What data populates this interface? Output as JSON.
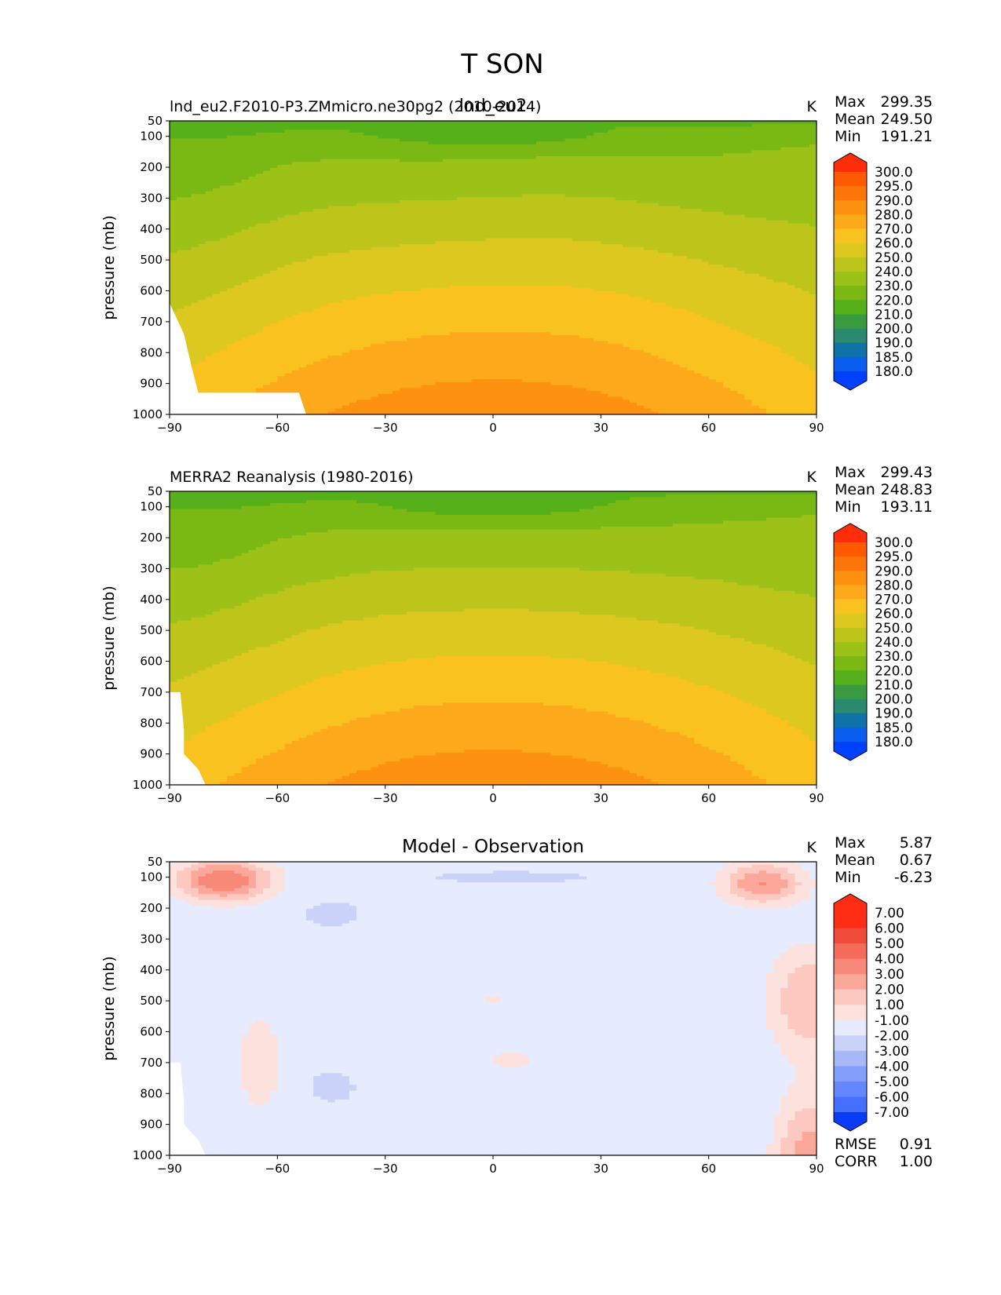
{
  "figure": {
    "title": "T SON"
  },
  "colors": {
    "sequential": [
      "#0040ff",
      "#0a5ff0",
      "#0f72a8",
      "#2a8a70",
      "#3a9a40",
      "#56b01a",
      "#7ab814",
      "#9cc217",
      "#bdc51a",
      "#dcc81f",
      "#f9c21f",
      "#fda91a",
      "#fd9110",
      "#fd7508",
      "#ff5a00",
      "#ff2d0a"
    ],
    "diverging": [
      "#0b3cf5",
      "#2456ff",
      "#4570ff",
      "#6487ff",
      "#849ffb",
      "#a6b8f8",
      "#c9d3f9",
      "#e6ebfd",
      "#fdfdfd",
      "#fde1dd",
      "#fdc8c0",
      "#fba799",
      "#f88877",
      "#f56b59",
      "#f04a3a",
      "#ff2d14"
    ]
  },
  "chart_data": [
    {
      "type": "heatmap",
      "subtype": "filled-contour",
      "panel": "test",
      "title_left": "lnd_eu2.F2010-P3.ZMmicro.ne30pg2 (2010-2014)",
      "title_center": "lnd_eu2",
      "units": "K",
      "xlabel": "",
      "ylabel": "pressure (mb)",
      "xlim": [
        -90,
        90
      ],
      "ylim": [
        1000,
        50
      ],
      "xticks": [
        "−90",
        "−60",
        "−30",
        "0",
        "30",
        "60",
        "90"
      ],
      "yticks": [
        "50",
        "100",
        "200",
        "300",
        "400",
        "500",
        "600",
        "700",
        "800",
        "900",
        "1000"
      ],
      "stats": [
        {
          "label": "Max",
          "value": "299.35"
        },
        {
          "label": "Mean",
          "value": "249.50"
        },
        {
          "label": "Min",
          "value": "191.21"
        }
      ],
      "colorbar": {
        "levels": [
          "300.0",
          "295.0",
          "290.0",
          "280.0",
          "270.0",
          "260.0",
          "250.0",
          "240.0",
          "230.0",
          "220.0",
          "210.0",
          "200.0",
          "190.0",
          "185.0",
          "180.0"
        ],
        "extend": "both"
      },
      "max": 299.35,
      "mean": 249.5,
      "min": 191.21
    },
    {
      "type": "heatmap",
      "subtype": "filled-contour",
      "panel": "reference",
      "title_left": "MERRA2 Reanalysis (1980-2016)",
      "title_center": "",
      "units": "K",
      "xlabel": "",
      "ylabel": "pressure (mb)",
      "xlim": [
        -90,
        90
      ],
      "ylim": [
        1000,
        50
      ],
      "xticks": [
        "−90",
        "−60",
        "−30",
        "0",
        "30",
        "60",
        "90"
      ],
      "yticks": [
        "50",
        "100",
        "200",
        "300",
        "400",
        "500",
        "600",
        "700",
        "800",
        "900",
        "1000"
      ],
      "stats": [
        {
          "label": "Max",
          "value": "299.43"
        },
        {
          "label": "Mean",
          "value": "248.83"
        },
        {
          "label": "Min",
          "value": "193.11"
        }
      ],
      "colorbar": {
        "levels": [
          "300.0",
          "295.0",
          "290.0",
          "280.0",
          "270.0",
          "260.0",
          "250.0",
          "240.0",
          "230.0",
          "220.0",
          "210.0",
          "200.0",
          "190.0",
          "185.0",
          "180.0"
        ],
        "extend": "both"
      },
      "max": 299.43,
      "mean": 248.83,
      "min": 193.11
    },
    {
      "type": "heatmap",
      "subtype": "filled-contour",
      "panel": "difference",
      "title_left": "",
      "title_center": "Model - Observation",
      "units": "K",
      "xlabel": "",
      "ylabel": "pressure (mb)",
      "xlim": [
        -90,
        90
      ],
      "ylim": [
        1000,
        50
      ],
      "xticks": [
        "−90",
        "−60",
        "−30",
        "0",
        "30",
        "60",
        "90"
      ],
      "yticks": [
        "50",
        "100",
        "200",
        "300",
        "400",
        "500",
        "600",
        "700",
        "800",
        "900",
        "1000"
      ],
      "stats": [
        {
          "label": "Max",
          "value": "5.87"
        },
        {
          "label": "Mean",
          "value": "0.67"
        },
        {
          "label": "Min",
          "value": "-6.23"
        }
      ],
      "colorbar": {
        "levels": [
          "7.00",
          "6.00",
          "5.00",
          "4.00",
          "3.00",
          "2.00",
          "1.00",
          "-1.00",
          "-2.00",
          "-3.00",
          "-4.00",
          "-5.00",
          "-6.00",
          "-7.00"
        ],
        "extend": "both"
      },
      "extra_stats": [
        {
          "label": "RMSE",
          "value": "0.91"
        },
        {
          "label": "CORR",
          "value": "1.00"
        }
      ],
      "max": 5.87,
      "mean": 0.67,
      "min": -6.23,
      "rmse": 0.91,
      "corr": 1.0
    }
  ]
}
